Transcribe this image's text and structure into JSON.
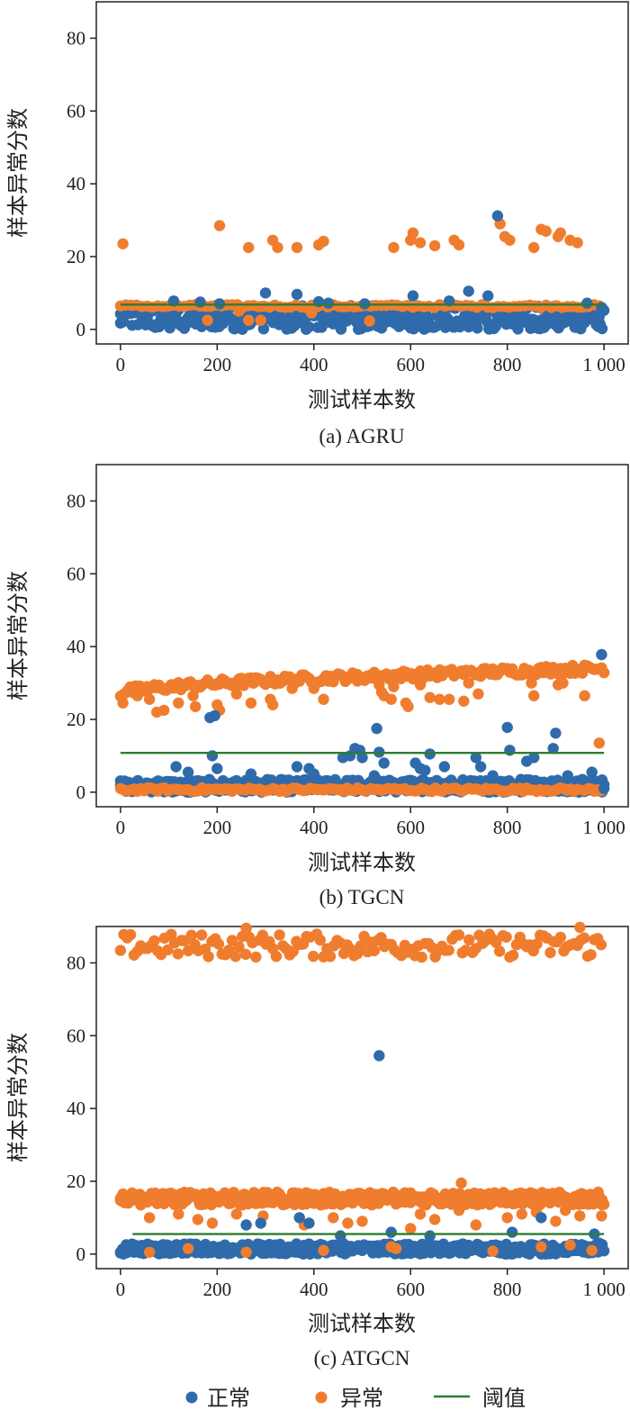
{
  "colors": {
    "normal": "#2F6BAA",
    "anomaly": "#F07D2E",
    "threshold": "#2E7D32"
  },
  "legend": {
    "normal": "正常",
    "anomaly": "异常",
    "threshold": "阈值"
  },
  "chart_data": [
    {
      "type": "scatter",
      "caption": "(a) AGRU",
      "xlabel": "测试样本数",
      "ylabel": "样本异常分数",
      "xlim": [
        -50,
        1050
      ],
      "ylim": [
        -4,
        90
      ],
      "xticks": [
        0,
        200,
        400,
        600,
        800,
        1000
      ],
      "xtick_labels": [
        "0",
        "200",
        "400",
        "600",
        "800",
        "1 000"
      ],
      "yticks": [
        0,
        20,
        40,
        60,
        80
      ],
      "threshold": {
        "x": [
          0,
          1000
        ],
        "y": 6.8
      },
      "normal_band": {
        "x_start": 0,
        "x_end": 1000,
        "y_min": 0,
        "y_max": 6.5
      },
      "normal_outliers": [
        [
          110,
          7.8
        ],
        [
          165,
          7.5
        ],
        [
          205,
          7.0
        ],
        [
          300,
          10.0
        ],
        [
          365,
          9.6
        ],
        [
          410,
          7.6
        ],
        [
          430,
          7.2
        ],
        [
          505,
          7.0
        ],
        [
          605,
          9.2
        ],
        [
          680,
          7.8
        ],
        [
          720,
          10.5
        ],
        [
          760,
          9.2
        ],
        [
          780,
          31.2
        ],
        [
          965,
          7.2
        ],
        [
          995,
          6.0
        ]
      ],
      "anomaly_high": [
        [
          5,
          23.5
        ],
        [
          205,
          28.5
        ],
        [
          265,
          22.5
        ],
        [
          315,
          24.5
        ],
        [
          325,
          22.5
        ],
        [
          365,
          22.5
        ],
        [
          410,
          23.2
        ],
        [
          420,
          24.2
        ],
        [
          565,
          22.5
        ],
        [
          600,
          24.5
        ],
        [
          605,
          26.5
        ],
        [
          620,
          23.8
        ],
        [
          650,
          23.0
        ],
        [
          690,
          24.5
        ],
        [
          700,
          23.2
        ],
        [
          785,
          29.0
        ],
        [
          795,
          25.5
        ],
        [
          805,
          24.5
        ],
        [
          855,
          22.5
        ],
        [
          870,
          27.5
        ],
        [
          880,
          27.0
        ],
        [
          905,
          25.5
        ],
        [
          910,
          26.5
        ],
        [
          930,
          24.5
        ],
        [
          945,
          23.8
        ]
      ],
      "anomaly_band": {
        "x_start": 0,
        "x_end": 1000,
        "y_min": 6.0,
        "y_max": 6.8
      },
      "anomaly_low": [
        [
          180,
          2.5
        ],
        [
          265,
          2.5
        ],
        [
          290,
          2.5
        ],
        [
          515,
          2.3
        ],
        [
          395,
          4.5
        ],
        [
          245,
          5.0
        ]
      ]
    },
    {
      "type": "scatter",
      "caption": "(b) TGCN",
      "xlabel": "测试样本数",
      "ylabel": "样本异常分数",
      "xlim": [
        -50,
        1050
      ],
      "ylim": [
        -4,
        90
      ],
      "xticks": [
        0,
        200,
        400,
        600,
        800,
        1000
      ],
      "xtick_labels": [
        "0",
        "200",
        "400",
        "600",
        "800",
        "1 000"
      ],
      "yticks": [
        0,
        20,
        40,
        60,
        80
      ],
      "threshold": {
        "x": [
          0,
          1000
        ],
        "y": 10.8
      },
      "normal_band": {
        "x_start": 0,
        "x_end": 1000,
        "y_min": 0,
        "y_max": 3.5
      },
      "normal_outliers": [
        [
          115,
          7.0
        ],
        [
          140,
          5.5
        ],
        [
          185,
          20.5
        ],
        [
          190,
          10.0
        ],
        [
          195,
          21.0
        ],
        [
          200,
          6.5
        ],
        [
          270,
          5.0
        ],
        [
          365,
          7.0
        ],
        [
          390,
          6.5
        ],
        [
          400,
          5.0
        ],
        [
          460,
          9.5
        ],
        [
          475,
          10.0
        ],
        [
          485,
          12.0
        ],
        [
          495,
          11.5
        ],
        [
          500,
          9.5
        ],
        [
          525,
          4.5
        ],
        [
          530,
          17.5
        ],
        [
          535,
          11.0
        ],
        [
          545,
          8.0
        ],
        [
          610,
          8.0
        ],
        [
          620,
          6.5
        ],
        [
          630,
          6.0
        ],
        [
          640,
          10.5
        ],
        [
          670,
          7.0
        ],
        [
          735,
          9.5
        ],
        [
          745,
          7.0
        ],
        [
          770,
          4.5
        ],
        [
          800,
          17.8
        ],
        [
          805,
          11.5
        ],
        [
          840,
          8.5
        ],
        [
          855,
          9.5
        ],
        [
          900,
          16.2
        ],
        [
          895,
          12.0
        ],
        [
          925,
          4.5
        ],
        [
          955,
          3.5
        ],
        [
          975,
          5.5
        ],
        [
          995,
          37.8
        ],
        [
          1000,
          1.0
        ]
      ],
      "anomaly_trend": {
        "x_start": 0,
        "x_end": 1000,
        "y_start": 27.0,
        "y_end": 34.0,
        "spread": 1.2
      },
      "anomaly_high": [
        [
          5,
          24.5
        ],
        [
          35,
          26.5
        ],
        [
          60,
          25.5
        ],
        [
          75,
          22.0
        ],
        [
          90,
          22.5
        ],
        [
          120,
          24.5
        ],
        [
          150,
          26.5
        ],
        [
          155,
          23.5
        ],
        [
          200,
          24.0
        ],
        [
          205,
          22.5
        ],
        [
          240,
          27.0
        ],
        [
          270,
          24.5
        ],
        [
          310,
          25.5
        ],
        [
          315,
          24.0
        ],
        [
          355,
          28.5
        ],
        [
          400,
          28.5
        ],
        [
          420,
          25.5
        ],
        [
          490,
          30.5
        ],
        [
          535,
          29.5
        ],
        [
          540,
          27.5
        ],
        [
          545,
          26.5
        ],
        [
          560,
          25.5
        ],
        [
          565,
          29.0
        ],
        [
          590,
          24.5
        ],
        [
          595,
          23.5
        ],
        [
          620,
          29.5
        ],
        [
          640,
          26.0
        ],
        [
          660,
          25.5
        ],
        [
          680,
          25.5
        ],
        [
          710,
          25.0
        ],
        [
          720,
          30.0
        ],
        [
          740,
          27.0
        ],
        [
          850,
          30.0
        ],
        [
          855,
          26.5
        ],
        [
          905,
          29.5
        ],
        [
          915,
          30.0
        ],
        [
          960,
          26.5
        ],
        [
          990,
          13.5
        ]
      ],
      "anomaly_low_band": {
        "x_start": 0,
        "x_end": 1000,
        "y_min": 0.2,
        "y_max": 1.2
      }
    },
    {
      "type": "scatter",
      "caption": "(c) ATGCN",
      "xlabel": "测试样本数",
      "ylabel": "样本异常分数",
      "xlim": [
        -50,
        1050
      ],
      "ylim": [
        -4,
        90
      ],
      "xticks": [
        0,
        200,
        400,
        600,
        800,
        1000
      ],
      "xtick_labels": [
        "0",
        "200",
        "400",
        "600",
        "800",
        "1 000"
      ],
      "yticks": [
        0,
        20,
        40,
        60,
        80
      ],
      "threshold": {
        "x": [
          25,
          1000
        ],
        "y": 5.5
      },
      "normal_band": {
        "x_start": 0,
        "x_end": 1000,
        "y_min": 0,
        "y_max": 2.8
      },
      "normal_outliers": [
        [
          260,
          8.0
        ],
        [
          290,
          8.5
        ],
        [
          370,
          10.0
        ],
        [
          390,
          8.5
        ],
        [
          455,
          5.0
        ],
        [
          535,
          54.5
        ],
        [
          560,
          6.0
        ],
        [
          640,
          5.0
        ],
        [
          810,
          6.0
        ],
        [
          870,
          10.0
        ],
        [
          980,
          5.5
        ],
        [
          990,
          3.0
        ]
      ],
      "anomaly_top_band": {
        "x_start": 0,
        "x_end": 1000,
        "y_min": 81.5,
        "y_max": 88.0
      },
      "anomaly_top_extra": [
        [
          260,
          89.5
        ],
        [
          950,
          90.0
        ]
      ],
      "anomaly_mid_band": {
        "x_start": 0,
        "x_end": 1000,
        "y_min": 13.5,
        "y_max": 17.0
      },
      "anomaly_mid_extra": [
        [
          5,
          16.5
        ],
        [
          60,
          10.0
        ],
        [
          120,
          11.0
        ],
        [
          160,
          9.5
        ],
        [
          190,
          8.5
        ],
        [
          240,
          11.0
        ],
        [
          295,
          10.5
        ],
        [
          380,
          8.0
        ],
        [
          440,
          10.0
        ],
        [
          470,
          8.5
        ],
        [
          500,
          9.0
        ],
        [
          600,
          7.0
        ],
        [
          620,
          11.0
        ],
        [
          650,
          9.5
        ],
        [
          700,
          12.0
        ],
        [
          705,
          19.5
        ],
        [
          735,
          8.0
        ],
        [
          800,
          10.0
        ],
        [
          830,
          11.0
        ],
        [
          860,
          11.5
        ],
        [
          900,
          9.0
        ],
        [
          920,
          12.0
        ],
        [
          950,
          10.5
        ],
        [
          995,
          10.5
        ]
      ],
      "anomaly_low": [
        [
          60,
          0.5
        ],
        [
          140,
          1.5
        ],
        [
          260,
          0.5
        ],
        [
          420,
          1.0
        ],
        [
          560,
          2.0
        ],
        [
          570,
          1.5
        ],
        [
          770,
          0.8
        ],
        [
          870,
          2.0
        ],
        [
          930,
          2.5
        ],
        [
          975,
          1.0
        ]
      ]
    }
  ]
}
